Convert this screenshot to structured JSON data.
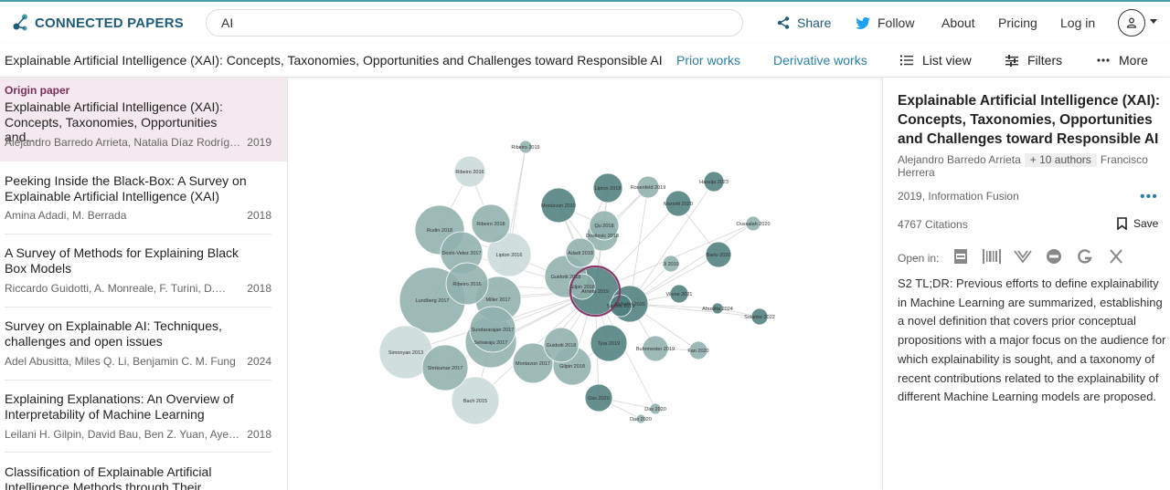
{
  "header": {
    "logo_text": "CONNECTED PAPERS",
    "search_value": "AI",
    "share_label": "Share",
    "follow_label": "Follow",
    "about_label": "About",
    "pricing_label": "Pricing",
    "login_label": "Log in"
  },
  "subbar": {
    "title": "Explainable Artificial Intelligence (XAI): Concepts, Taxonomies, Opportunities and Challenges toward Responsible AI",
    "prior_label": "Prior works",
    "derivative_label": "Derivative works",
    "list_label": "List view",
    "filters_label": "Filters",
    "more_label": "More"
  },
  "list": {
    "origin_label": "Origin paper",
    "items": [
      {
        "title": "Explainable Artificial Intelligence (XAI): Concepts, Taxonomies, Opportunities and…",
        "authors": "Alejandro Barredo Arrieta, Natalia Díaz Rodrígue…",
        "year": "2019"
      },
      {
        "title": "Peeking Inside the Black-Box: A Survey on Explainable Artificial Intelligence (XAI)",
        "authors": "Amina Adadi, M. Berrada",
        "year": "2018"
      },
      {
        "title": "A Survey of Methods for Explaining Black Box Models",
        "authors": "Riccardo Guidotti, A. Monreale, F. Turini, D.…",
        "year": "2018"
      },
      {
        "title": "Survey on Explainable AI: Techniques, challenges and open issues",
        "authors": "Adel Abusitta, Miles Q. Li, Benjamin C. M. Fung",
        "year": "2024"
      },
      {
        "title": "Explaining Explanations: An Overview of Interpretability of Machine Learning",
        "authors": "Leilani H. Gilpin, David Bau, Ben Z. Yuan, Ayesha…",
        "year": "2018"
      },
      {
        "title": "Classification of Explainable Artificial Intelligence Methods through Their Output…",
        "authors": "",
        "year": ""
      }
    ]
  },
  "graph": {
    "colors": {
      "light": "#c9dad8",
      "mid": "#8fb0ad",
      "dark": "#4f807c",
      "edge": "#d6d6d6",
      "origin_ring": "#8a3a6a"
    },
    "nodes": [
      {
        "label": "Ribeiro 2019",
        "shade": "mid"
      },
      {
        "label": "Ribeiro 2016",
        "shade": "light"
      },
      {
        "label": "Lipton 2018",
        "shade": "dark"
      },
      {
        "label": "Rosenfeld 2019",
        "shade": "mid"
      },
      {
        "label": "Hassija 2023",
        "shade": "dark"
      },
      {
        "label": "Montavon 2019",
        "shade": "dark"
      },
      {
        "label": "Mariotti 2020",
        "shade": "dark"
      },
      {
        "label": "Dosilovic 2018",
        "shade": "mid"
      },
      {
        "label": "Rudin 2018",
        "shade": "mid"
      },
      {
        "label": "Ribeiro 2018",
        "shade": "mid"
      },
      {
        "label": "Gilpin 2018",
        "shade": "mid"
      },
      {
        "label": "Qu 2018",
        "shade": "mid"
      },
      {
        "label": "Oussalah 2020",
        "shade": "mid"
      },
      {
        "label": "Doshi-Velez 2017",
        "shade": "mid"
      },
      {
        "label": "Lipton 2016",
        "shade": "light"
      },
      {
        "label": "Adadi 2018",
        "shade": "mid"
      },
      {
        "label": "Ji 2019",
        "shade": "mid"
      },
      {
        "label": "Barto 2020",
        "shade": "dark"
      },
      {
        "label": "Lundberg 2017",
        "shade": "mid"
      },
      {
        "label": "Ribeiro 2016",
        "shade": "mid"
      },
      {
        "label": "Guidotti 2018",
        "shade": "mid"
      },
      {
        "label": "Miller 2017",
        "shade": "mid"
      },
      {
        "label": "Arrieta 2019",
        "shade": "dark"
      },
      {
        "label": "Samek 2019",
        "shade": "dark"
      },
      {
        "label": "Alshehri 2020",
        "shade": "dark"
      },
      {
        "label": "Vilone 2021",
        "shade": "dark"
      },
      {
        "label": "Abusitta 2024",
        "shade": "dark"
      },
      {
        "label": "Solanke 2022",
        "shade": "dark"
      },
      {
        "label": "Simonyan 2013",
        "shade": "light"
      },
      {
        "label": "Selvaraju 2017",
        "shade": "mid"
      },
      {
        "label": "Sundararajan 2017",
        "shade": "mid"
      },
      {
        "label": "Guidotti 2018",
        "shade": "mid"
      },
      {
        "label": "Tjoa 2019",
        "shade": "dark"
      },
      {
        "label": "Buhrmester 2019",
        "shade": "mid"
      },
      {
        "label": "Fan 2020",
        "shade": "mid"
      },
      {
        "label": "Shrikumar 2017",
        "shade": "mid"
      },
      {
        "label": "Montavon 2017",
        "shade": "mid"
      },
      {
        "label": "Gilpin 2018",
        "shade": "mid"
      },
      {
        "label": "Bach 2015",
        "shade": "light"
      },
      {
        "label": "Das 2020",
        "shade": "dark"
      },
      {
        "label": "Das 2020",
        "shade": "mid"
      },
      {
        "label": "Dao 2020",
        "shade": "mid"
      }
    ]
  },
  "detail": {
    "title": "Explainable Artificial Intelligence (XAI): Concepts, Taxonomies, Opportunities and Challenges toward Responsible AI",
    "author_first": "Alejandro Barredo Arrieta",
    "more_authors": "+ 10 authors",
    "author_last": "Francisco Herrera",
    "venue": "2019, Information Fusion",
    "menu_dots": "•••",
    "citations": "4767 Citations",
    "save_label": "Save",
    "open_in_label": "Open in:",
    "tldr": "S2 TL;DR: Previous efforts to define explainability in Machine Learning are summarized, establishing a novel definition that covers prior conceptual propositions with a major focus on the audience for which explainability is sought, and a taxonomy of recent contributions related to the explainability of different Machine Learning models are proposed."
  }
}
